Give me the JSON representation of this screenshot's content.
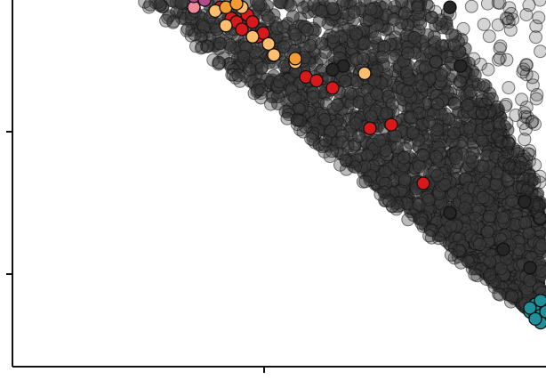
{
  "chart_data": {
    "type": "scatter",
    "title": "",
    "xlabel": "",
    "ylabel": "",
    "xlim": [
      0,
      100
    ],
    "ylim": [
      0,
      100
    ],
    "grid": false,
    "legend": "none",
    "colors": {
      "background_points": "#3a3a3a",
      "outline": "#111111",
      "red": "#d7191c",
      "peach": "#fdbf6f",
      "orange": "#f39c32",
      "pink": "#f08a9a",
      "magenta": "#b24a8c",
      "teal": "#1f8f99",
      "dark": "#262626"
    },
    "series": [
      {
        "values": [
          [
            39,
            98
          ],
          [
            41,
            95
          ],
          [
            42,
            94
          ],
          [
            43,
            92
          ],
          [
            44,
            96
          ],
          [
            45,
            94
          ],
          [
            46,
            90
          ],
          [
            47,
            91
          ],
          [
            55,
            79
          ],
          [
            57,
            78
          ],
          [
            60,
            76
          ],
          [
            67,
            65
          ],
          [
            71,
            66
          ],
          [
            77,
            50
          ]
        ],
        "color": "red"
      },
      {
        "values": [
          [
            38,
            97
          ],
          [
            40,
            93
          ],
          [
            43,
            98
          ],
          [
            45,
            90
          ],
          [
            48,
            88
          ],
          [
            49,
            85
          ],
          [
            53,
            83
          ],
          [
            66,
            80
          ]
        ],
        "color": "peach"
      },
      {
        "values": [
          [
            40,
            98
          ],
          [
            42,
            99
          ],
          [
            53,
            84
          ]
        ],
        "color": "orange"
      },
      {
        "values": [
          [
            34,
            98
          ]
        ],
        "color": "pink"
      },
      {
        "values": [
          [
            34,
            101
          ],
          [
            35,
            102
          ],
          [
            36,
            100
          ]
        ],
        "color": "magenta"
      },
      {
        "values": [
          [
            97,
            15
          ],
          [
            98,
            14
          ],
          [
            99,
            16
          ],
          [
            100,
            17
          ],
          [
            100,
            13
          ],
          [
            98,
            17
          ],
          [
            99,
            12
          ],
          [
            100,
            15
          ],
          [
            97,
            16
          ],
          [
            99,
            18
          ],
          [
            98,
            13
          ]
        ],
        "color": "teal"
      },
      {
        "values": [
          [
            82,
            98
          ],
          [
            84,
            82
          ],
          [
            96,
            45
          ],
          [
            62,
            82
          ],
          [
            60,
            81
          ],
          [
            97,
            27
          ],
          [
            82,
            42
          ],
          [
            92,
            32
          ]
        ],
        "color": "dark"
      }
    ]
  }
}
